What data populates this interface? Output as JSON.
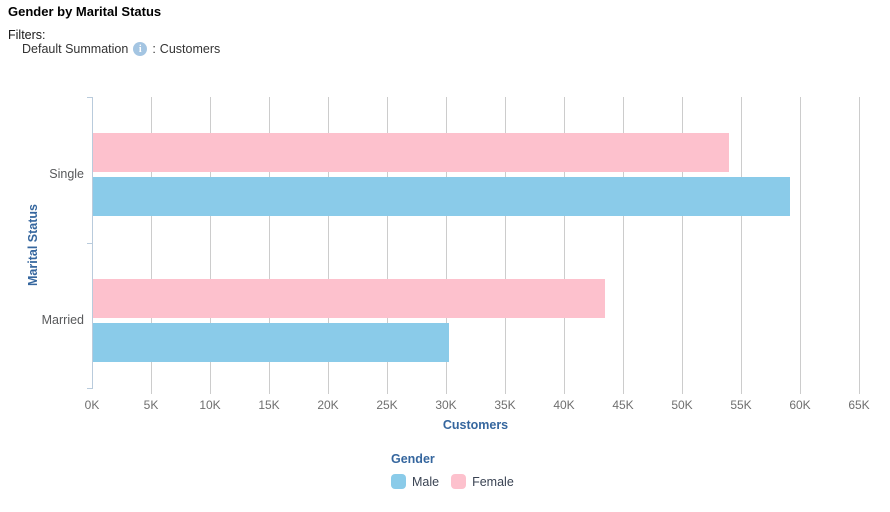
{
  "header": {
    "title": "Gender by Marital Status",
    "filters_label": "Filters:",
    "filter_name": "Default Summation",
    "info_glyph": "i",
    "filter_separator": ":",
    "filter_value": "Customers"
  },
  "colors": {
    "male": "#8acbe9",
    "female": "#fdc1cd",
    "axis_title": "#35669e",
    "legend_title": "#35669e",
    "tick_label": "#6f6f6f",
    "category_label": "#58595b",
    "gridline": "#cccccc",
    "axis_line": "#b9cbdc",
    "legend_text": "#3a4353",
    "title_text": "#000000",
    "filter_text": "#333333",
    "info_bg": "#a4c5e2",
    "info_fg": "#ffffff"
  },
  "chart_data": {
    "type": "bar",
    "orientation": "horizontal",
    "title": "Gender by Marital Status",
    "categories": [
      "Single",
      "Married"
    ],
    "series": [
      {
        "name": "Male",
        "color": "#8acbe9",
        "values": [
          59100,
          30200
        ]
      },
      {
        "name": "Female",
        "color": "#fdc1cd",
        "values": [
          53900,
          43400
        ]
      }
    ],
    "xlabel": "Customers",
    "ylabel": "Marital Status",
    "xlim": [
      0,
      65000
    ],
    "x_tick_interval": 5000,
    "x_tick_labels": [
      "0K",
      "5K",
      "10K",
      "15K",
      "20K",
      "25K",
      "30K",
      "35K",
      "40K",
      "45K",
      "50K",
      "55K",
      "60K",
      "65K"
    ],
    "grid": true,
    "legend_title": "Gender",
    "legend_position": "bottom"
  }
}
